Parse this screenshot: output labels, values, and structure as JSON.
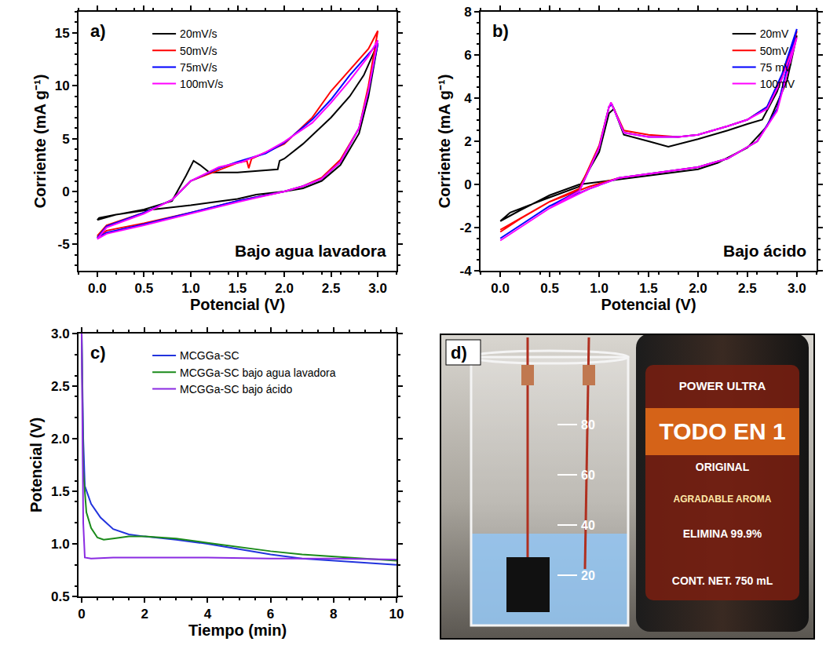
{
  "chart_data": [
    {
      "type": "line",
      "panel": "a)",
      "annotations": [
        "Bajo agua lavadora"
      ],
      "x_label": "Potencial (V)",
      "y_label": "Corriente (mA g⁻¹)",
      "xlim": [
        -0.2,
        3.2
      ],
      "xticks": [
        {
          "value": 0,
          "label": "0.0"
        },
        0.5,
        {
          "value": 1,
          "label": "1.0"
        },
        1.5,
        {
          "value": 2,
          "label": "2.0"
        },
        2.5,
        {
          "value": 3,
          "label": "3.0"
        }
      ],
      "ylim": [
        -7.5,
        17
      ],
      "yticks": [
        -5,
        0,
        5,
        10,
        15
      ],
      "legend": "upper left",
      "grid": false,
      "series": [
        {
          "name": "20mV/s",
          "color": "#000000",
          "x": [
            0,
            0.2,
            0.5,
            0.8,
            0.95,
            1.03,
            1.1,
            1.2,
            1.5,
            1.8,
            1.93,
            1.95,
            2.0,
            2.2,
            2.5,
            2.7,
            2.85,
            3.0,
            2.9,
            2.8,
            2.6,
            2.4,
            2.2,
            2.0,
            1.7,
            1.5,
            1.0,
            0.5,
            0.2,
            0.02,
            0
          ],
          "values": [
            -2.7,
            -2.2,
            -1.7,
            -0.9,
            1.5,
            2.9,
            2.5,
            1.8,
            1.8,
            2.0,
            2.1,
            2.9,
            3.1,
            4.5,
            7,
            9,
            11,
            14,
            9,
            5.5,
            2.5,
            1,
            0.3,
            0,
            -0.3,
            -0.7,
            -1.3,
            -1.8,
            -2.2,
            -2.5,
            -2.7
          ]
        },
        {
          "name": "50mV/s",
          "color": "#ff0000",
          "x": [
            0,
            0.1,
            0.5,
            0.8,
            1.0,
            1.3,
            1.5,
            1.6,
            1.62,
            1.65,
            2.0,
            2.3,
            2.5,
            2.7,
            2.9,
            3.0,
            2.9,
            2.8,
            2.6,
            2.4,
            2.2,
            2.0,
            1.5,
            1.0,
            0.5,
            0.1,
            0
          ],
          "values": [
            -4.2,
            -3.2,
            -2,
            -0.8,
            1.0,
            2,
            2.7,
            2.9,
            2.2,
            3.1,
            4.5,
            7,
            9.5,
            11.5,
            13.5,
            15.2,
            10,
            6,
            3,
            1.3,
            0.5,
            0,
            -0.9,
            -2,
            -3,
            -3.7,
            -4.3
          ]
        },
        {
          "name": "75mV/s",
          "color": "#0000ff",
          "x": [
            0,
            0.1,
            0.5,
            0.8,
            1.0,
            1.3,
            1.5,
            1.8,
            2.0,
            2.3,
            2.5,
            2.7,
            2.9,
            3.0,
            2.9,
            2.8,
            2.6,
            2.4,
            2.2,
            2.0,
            1.5,
            1.0,
            0.5,
            0.1,
            0
          ],
          "values": [
            -4.4,
            -3.3,
            -2,
            -0.8,
            1.0,
            2.2,
            2.8,
            3.6,
            4.6,
            6.8,
            8.7,
            11,
            13,
            14,
            9.5,
            6,
            2.8,
            1.2,
            0.5,
            0,
            -0.9,
            -2,
            -3.1,
            -3.9,
            -4.4
          ]
        },
        {
          "name": "100mV/s",
          "color": "#ff00ff",
          "x": [
            0,
            0.1,
            0.5,
            0.8,
            1.0,
            1.3,
            1.55,
            1.8,
            2.0,
            2.3,
            2.5,
            2.7,
            2.9,
            3.0,
            2.9,
            2.8,
            2.6,
            2.4,
            2.2,
            2.0,
            1.5,
            1.0,
            0.5,
            0.1,
            0
          ],
          "values": [
            -4.5,
            -3.4,
            -2.1,
            -0.8,
            1.0,
            2.3,
            2.8,
            3.7,
            4.7,
            6.5,
            8.4,
            10.5,
            12.8,
            14.3,
            9.6,
            6,
            2.8,
            1.2,
            0.5,
            0,
            -1,
            -2.1,
            -3.2,
            -4,
            -4.5
          ]
        }
      ]
    },
    {
      "type": "line",
      "panel": "b)",
      "annotations": [
        "Bajo ácido"
      ],
      "x_label": "Potencial (V)",
      "y_label": "Corriente (mA g⁻¹)",
      "xlim": [
        -0.2,
        3.2
      ],
      "xticks": [
        {
          "value": 0,
          "label": "0.0"
        },
        0.5,
        {
          "value": 1,
          "label": "1.0"
        },
        1.5,
        {
          "value": 2,
          "label": "2.0"
        },
        2.5,
        {
          "value": 3,
          "label": "3.0"
        }
      ],
      "ylim": [
        -4,
        8
      ],
      "yticks": [
        -4,
        -2,
        0,
        2,
        4,
        6,
        8
      ],
      "legend": "upper right",
      "grid": false,
      "series": [
        {
          "name": "20mV",
          "color": "#000000",
          "x": [
            0,
            0.1,
            0.5,
            0.8,
            1.0,
            1.1,
            1.15,
            1.25,
            1.5,
            1.7,
            2.0,
            2.3,
            2.5,
            2.65,
            2.8,
            3.0,
            2.9,
            2.7,
            2.5,
            2.2,
            2.0,
            1.5,
            1.0,
            0.8,
            0.5,
            0.2,
            0
          ],
          "values": [
            -1.7,
            -1.3,
            -0.6,
            -0.1,
            1.5,
            3.3,
            3.5,
            2.3,
            2.0,
            1.75,
            2.1,
            2.5,
            2.8,
            3.0,
            4.3,
            6.9,
            4.8,
            2.7,
            1.7,
            1.0,
            0.7,
            0.4,
            0.1,
            0,
            -0.5,
            -1.2,
            -1.7
          ]
        },
        {
          "name": "50mV",
          "color": "#ff0000",
          "x": [
            0,
            0.5,
            0.8,
            1.0,
            1.1,
            1.13,
            1.25,
            1.5,
            1.8,
            2.0,
            2.3,
            2.5,
            2.7,
            2.85,
            3.0,
            2.8,
            2.6,
            2.3,
            2.0,
            1.5,
            1.2,
            0.9,
            0.5,
            0.2,
            0
          ],
          "values": [
            -2.1,
            -0.8,
            -0.2,
            1.8,
            3.6,
            3.7,
            2.5,
            2.3,
            2.2,
            2.3,
            2.7,
            3.0,
            3.6,
            5,
            7.1,
            3.5,
            2.0,
            1.2,
            0.8,
            0.5,
            0.3,
            -0.1,
            -0.8,
            -1.6,
            -2.2
          ]
        },
        {
          "name": "75 mV",
          "color": "#0000ff",
          "x": [
            0,
            0.5,
            0.8,
            1.0,
            1.1,
            1.13,
            1.25,
            1.5,
            1.8,
            2.0,
            2.3,
            2.5,
            2.7,
            2.85,
            3.0,
            2.8,
            2.6,
            2.3,
            2.0,
            1.5,
            1.2,
            0.9,
            0.5,
            0.2,
            0
          ],
          "values": [
            -2.5,
            -1,
            -0.3,
            1.7,
            3.6,
            3.7,
            2.4,
            2.2,
            2.2,
            2.3,
            2.7,
            3.0,
            3.6,
            5.1,
            7.2,
            3.5,
            2.0,
            1.2,
            0.8,
            0.5,
            0.3,
            -0.2,
            -1.0,
            -1.9,
            -2.5
          ]
        },
        {
          "name": "100mV",
          "color": "#ff00ff",
          "x": [
            0,
            0.5,
            0.8,
            1.0,
            1.1,
            1.12,
            1.25,
            1.5,
            1.8,
            2.0,
            2.3,
            2.5,
            2.7,
            2.85,
            3.0,
            2.8,
            2.6,
            2.3,
            2.0,
            1.5,
            1.2,
            0.9,
            0.5,
            0.2,
            0
          ],
          "values": [
            -2.6,
            -1.1,
            -0.3,
            1.7,
            3.6,
            3.8,
            2.4,
            2.2,
            2.2,
            2.3,
            2.7,
            3.0,
            3.5,
            4.9,
            6.8,
            3.4,
            2.0,
            1.2,
            0.8,
            0.5,
            0.3,
            -0.2,
            -1.1,
            -2.0,
            -2.6
          ]
        }
      ]
    },
    {
      "type": "line",
      "panel": "c)",
      "x_label": "Tiempo (min)",
      "y_label": "Potencial (V)",
      "xlim": [
        -0.1,
        10
      ],
      "xticks": [
        0,
        2,
        4,
        6,
        8,
        10
      ],
      "ylim": [
        0.5,
        3.0
      ],
      "yticks": [
        0.5,
        {
          "value": 1,
          "label": "1.0"
        },
        1.5,
        {
          "value": 2,
          "label": "2.0"
        },
        2.5,
        {
          "value": 3,
          "label": "3.0"
        }
      ],
      "legend": "upper left",
      "grid": false,
      "series": [
        {
          "name": "MCGGa-SC",
          "color": "#2233dd",
          "x": [
            0,
            0.05,
            0.1,
            0.3,
            0.6,
            1,
            1.5,
            2,
            3,
            4,
            5,
            6,
            7,
            8,
            9,
            10
          ],
          "values": [
            3.0,
            2.0,
            1.55,
            1.38,
            1.25,
            1.14,
            1.09,
            1.07,
            1.04,
            1.0,
            0.95,
            0.9,
            0.86,
            0.84,
            0.82,
            0.8
          ]
        },
        {
          "name": "MCGGa-SC bajo agua lavadora",
          "color": "#1a8a1a",
          "x": [
            0,
            0.05,
            0.15,
            0.3,
            0.5,
            0.7,
            1,
            1.5,
            2,
            3,
            4,
            5,
            6,
            7,
            8,
            9,
            10
          ],
          "values": [
            3.0,
            1.7,
            1.3,
            1.15,
            1.06,
            1.04,
            1.05,
            1.07,
            1.07,
            1.05,
            1.01,
            0.97,
            0.93,
            0.9,
            0.88,
            0.86,
            0.84
          ]
        },
        {
          "name": "MCGGa-SC bajo ácido",
          "color": "#8a2be2",
          "x": [
            0,
            0.05,
            0.1,
            0.3,
            1,
            2,
            4,
            6,
            8,
            10
          ],
          "values": [
            3.0,
            1.2,
            0.87,
            0.86,
            0.87,
            0.87,
            0.87,
            0.86,
            0.86,
            0.85
          ]
        }
      ]
    }
  ],
  "photo": {
    "panel": "d)",
    "texts": [
      "POWER ULTRA",
      "TODO EN 1",
      "ORIGINAL",
      "AGRADABLE AROMA",
      "ELIMINA 99.9%",
      "CONT. NET. 750 mL"
    ],
    "beaker_marks": [
      80,
      60,
      40,
      20
    ]
  }
}
